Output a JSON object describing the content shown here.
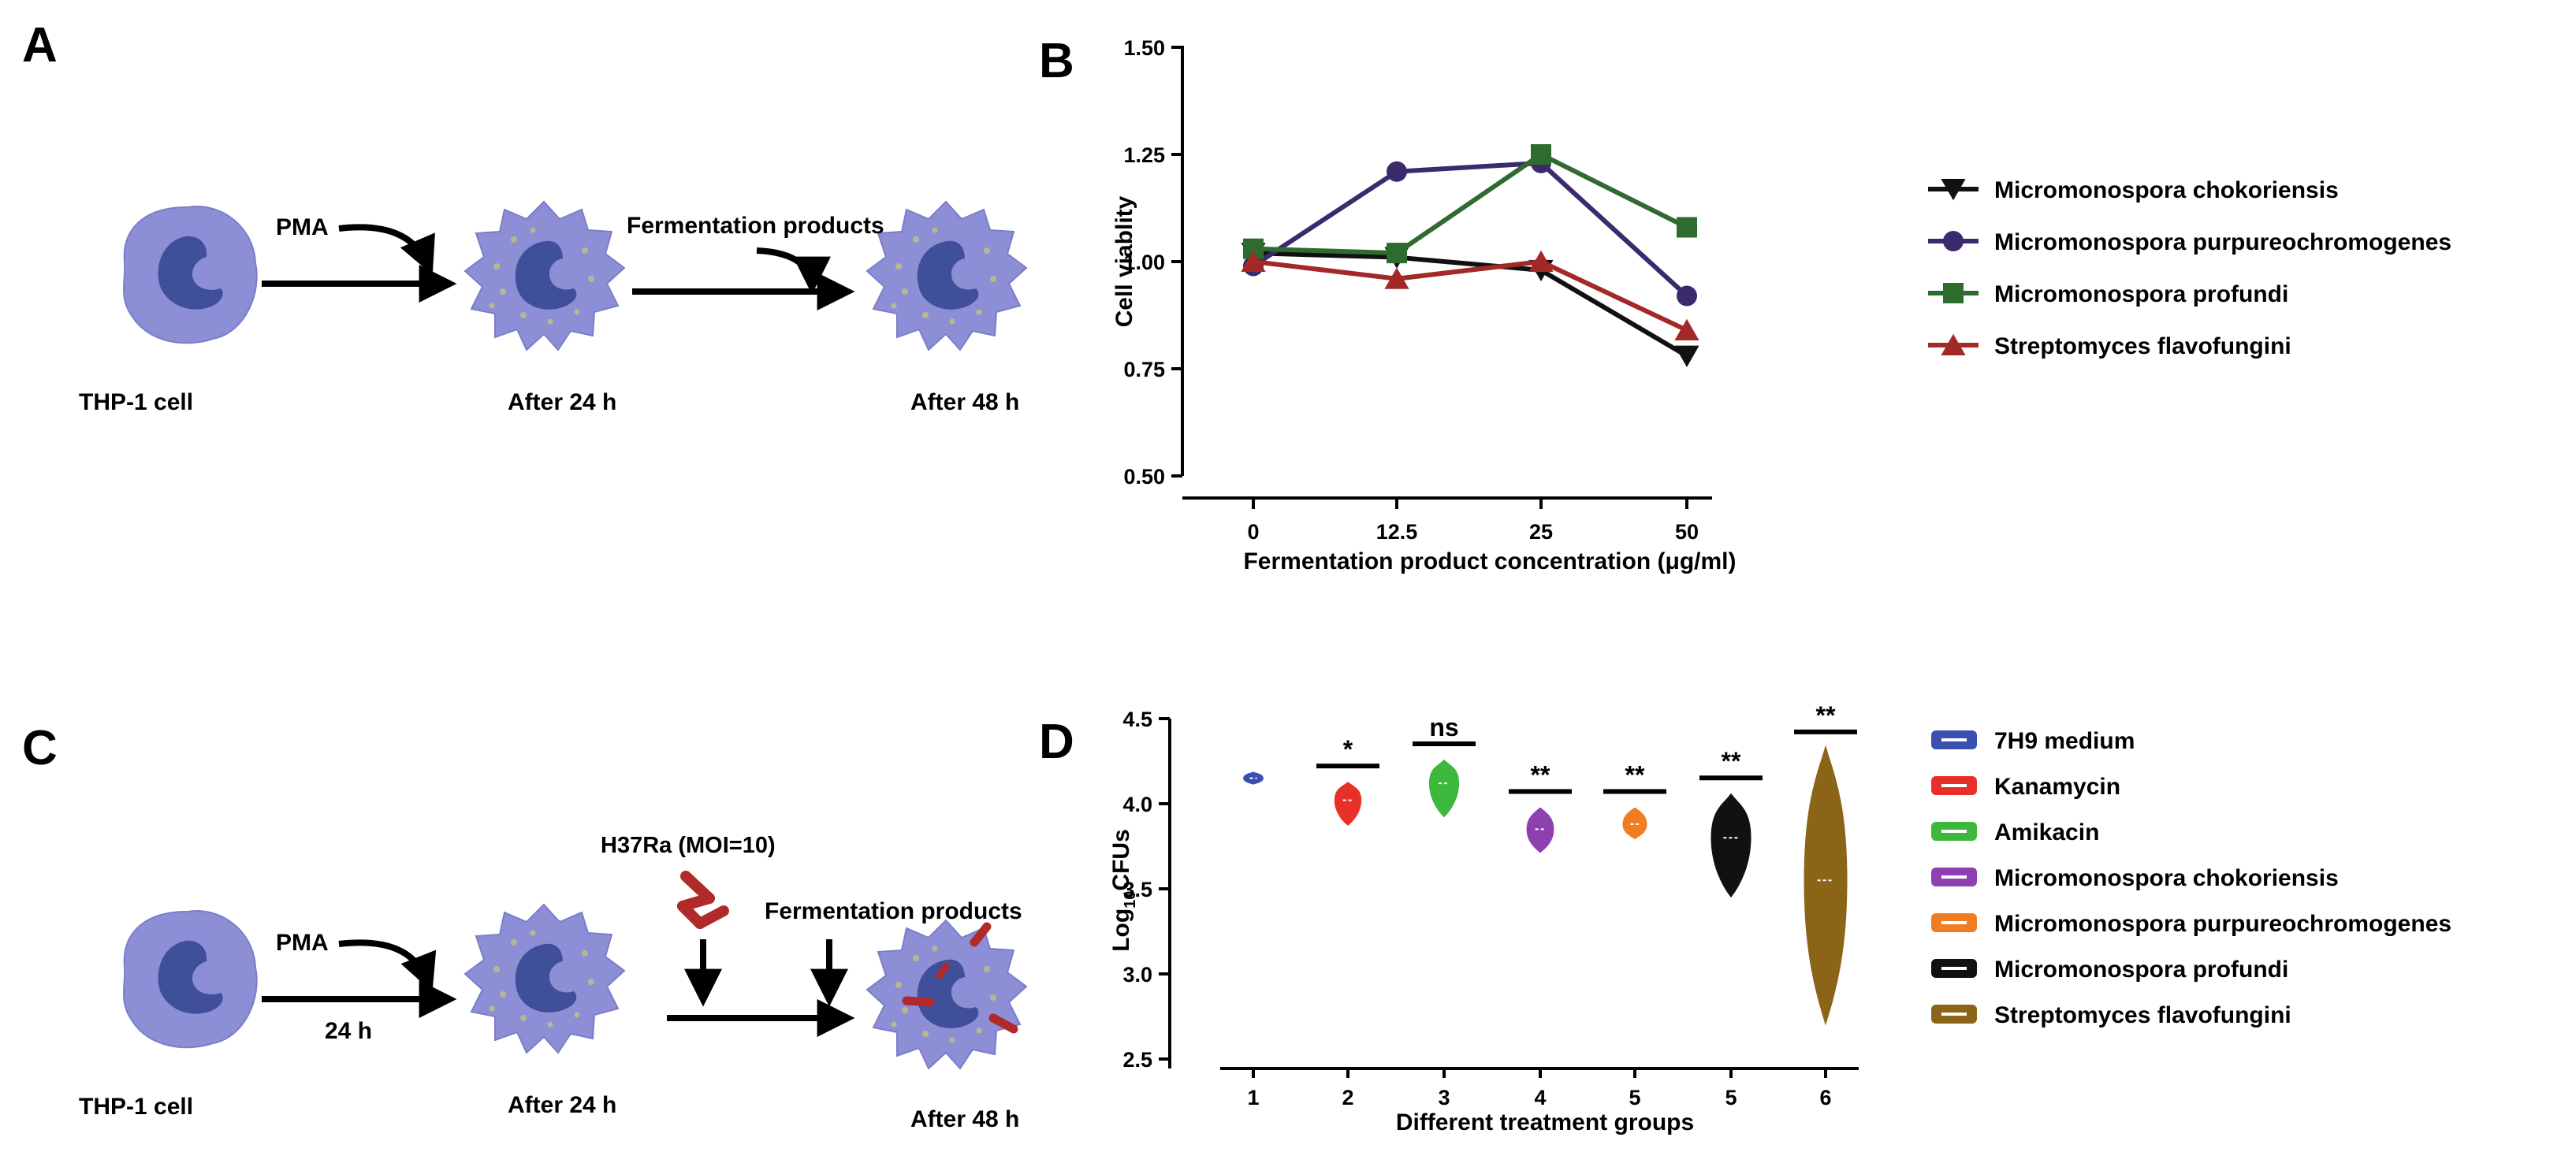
{
  "panels": {
    "a": {
      "letter": "A",
      "pma_label": "PMA",
      "fermentation_label": "Fermentation products",
      "cell_labels": [
        "THP-1 cell",
        "After 24 h",
        "After 48 h"
      ]
    },
    "b": {
      "letter": "B"
    },
    "c": {
      "letter": "C",
      "pma_label": "PMA",
      "time_label": "24 h",
      "h37ra_label": "H37Ra (MOI=10)",
      "fermentation_label": "Fermentation products",
      "cell_labels": [
        "THP-1 cell",
        "After 24 h",
        "After 48 h"
      ]
    },
    "d": {
      "letter": "D"
    }
  },
  "chart_data": [
    {
      "panel": "B",
      "type": "line",
      "xlabel": "Fermentation product concentration (μg/ml)",
      "ylabel": "Cell viablity",
      "categories": [
        "0",
        "12.5",
        "25",
        "50"
      ],
      "ylim": [
        0.5,
        1.5
      ],
      "yticks": [
        "0.50",
        "0.75",
        "1.00",
        "1.25",
        "1.50"
      ],
      "legend_position": "right",
      "series": [
        {
          "name": "Micromonospora chokoriensis",
          "marker": "triangle-down",
          "color": "#111111",
          "values": [
            1.02,
            1.01,
            0.98,
            0.78
          ]
        },
        {
          "name": "Micromonospora purpureochromogenes",
          "marker": "circle",
          "color": "#3b2a6e",
          "values": [
            0.99,
            1.21,
            1.23,
            0.92
          ]
        },
        {
          "name": "Micromonospora profundi",
          "marker": "square",
          "color": "#2e6b2e",
          "values": [
            1.03,
            1.02,
            1.25,
            1.08
          ]
        },
        {
          "name": "Streptomyces flavofungini",
          "marker": "triangle-up",
          "color": "#a32929",
          "values": [
            1.0,
            0.96,
            1.0,
            0.84
          ]
        }
      ]
    },
    {
      "panel": "D",
      "type": "violin",
      "xlabel": "Different treatment groups",
      "ylabel": "Log10CFUs",
      "ylabel_main": "Log",
      "ylabel_sub": "10",
      "ylabel_rest": "CFUs",
      "ylim": [
        2.5,
        4.5
      ],
      "yticks": [
        "2.5",
        "3.0",
        "3.5",
        "4.0",
        "4.5"
      ],
      "categories": [
        "1",
        "2",
        "3",
        "4",
        "5",
        "5",
        "6"
      ],
      "legend_position": "right",
      "series": [
        {
          "name": "7H9 medium",
          "color": "#3a4fb0",
          "min": 4.12,
          "max": 4.18,
          "median": 4.15,
          "significance": ""
        },
        {
          "name": "Kanamycin",
          "color": "#e8302a",
          "min": 3.88,
          "max": 4.12,
          "median": 4.02,
          "significance": "*"
        },
        {
          "name": "Amikacin",
          "color": "#3cb83c",
          "min": 3.93,
          "max": 4.25,
          "median": 4.12,
          "significance": "ns"
        },
        {
          "name": "Micromonospora chokoriensis",
          "color": "#8e3fb0",
          "min": 3.72,
          "max": 3.97,
          "median": 3.85,
          "significance": "**"
        },
        {
          "name": "Micromonospora purpureochromogenes",
          "color": "#f07d22",
          "min": 3.8,
          "max": 3.97,
          "median": 3.88,
          "significance": "**"
        },
        {
          "name": "Micromonospora profundi",
          "color": "#111111",
          "min": 3.46,
          "max": 4.05,
          "median": 3.8,
          "significance": "**"
        },
        {
          "name": "Streptomyces flavofungini",
          "color": "#8c6418",
          "min": 2.72,
          "max": 4.32,
          "median": 3.55,
          "significance": "**"
        }
      ]
    }
  ]
}
